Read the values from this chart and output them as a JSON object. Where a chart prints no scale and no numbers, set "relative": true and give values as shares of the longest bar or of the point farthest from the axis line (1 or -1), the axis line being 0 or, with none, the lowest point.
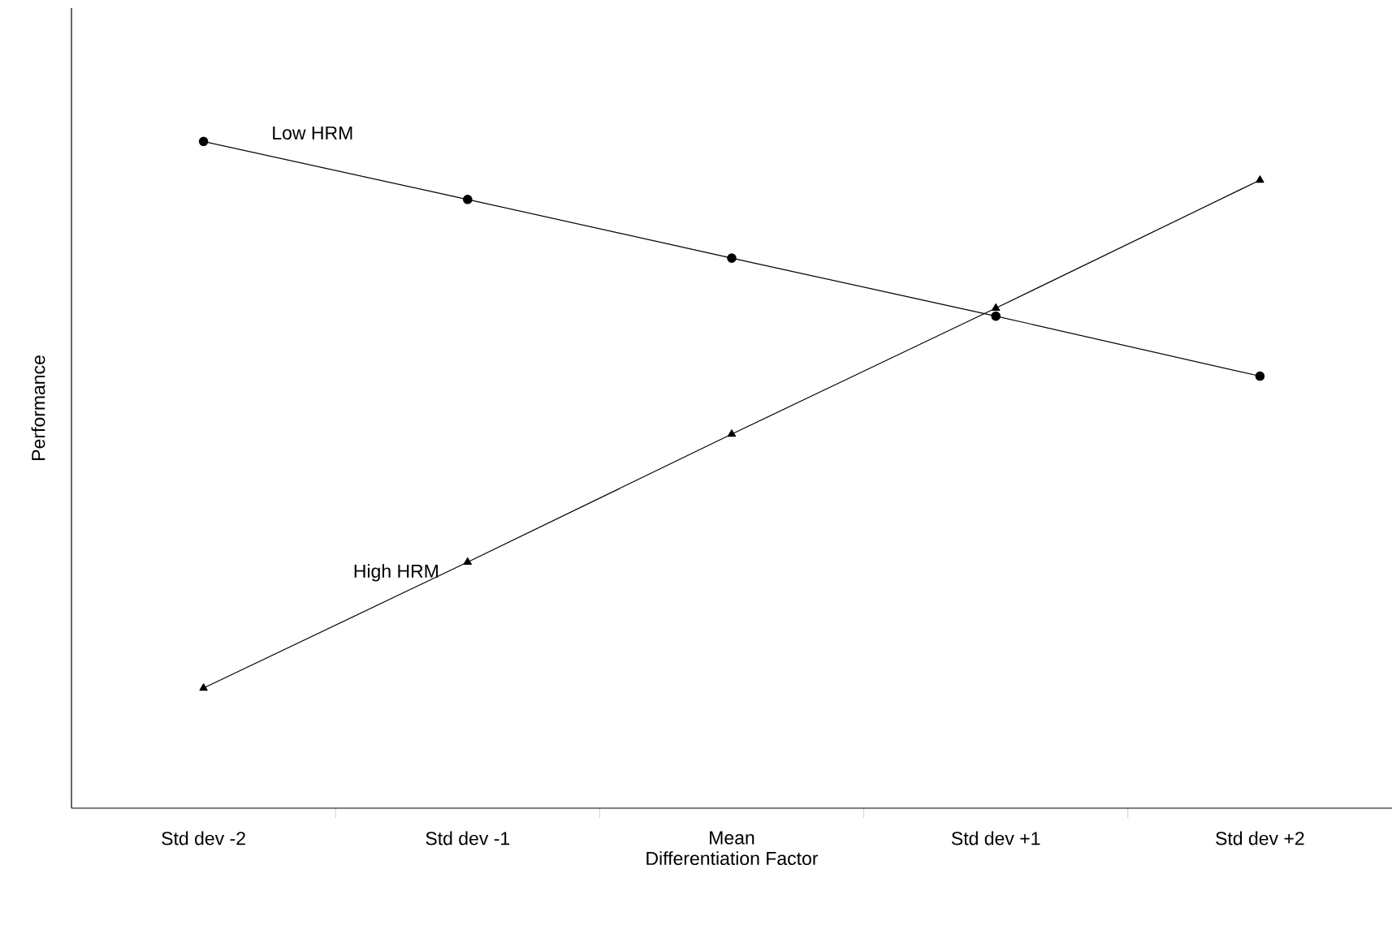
{
  "chart_data": {
    "type": "line",
    "relative": true,
    "xlabel": "Differentiation Factor",
    "ylabel": "Performance",
    "categories": [
      "Std dev -2",
      "Std dev -1",
      "Mean",
      "Std dev +1",
      "Std dev +2"
    ],
    "series": [
      {
        "name": "Low HRM",
        "color": "#000000",
        "marker": "circle",
        "values": [
          1,
          0.913,
          0.825,
          0.738,
          0.648
        ]
      },
      {
        "name": "High HRM",
        "color": "#000000",
        "marker": "triangle",
        "values": [
          0.18,
          0.369,
          0.561,
          0.75,
          0.942
        ]
      }
    ],
    "legend": false,
    "grid": false,
    "line_style": "solid"
  }
}
